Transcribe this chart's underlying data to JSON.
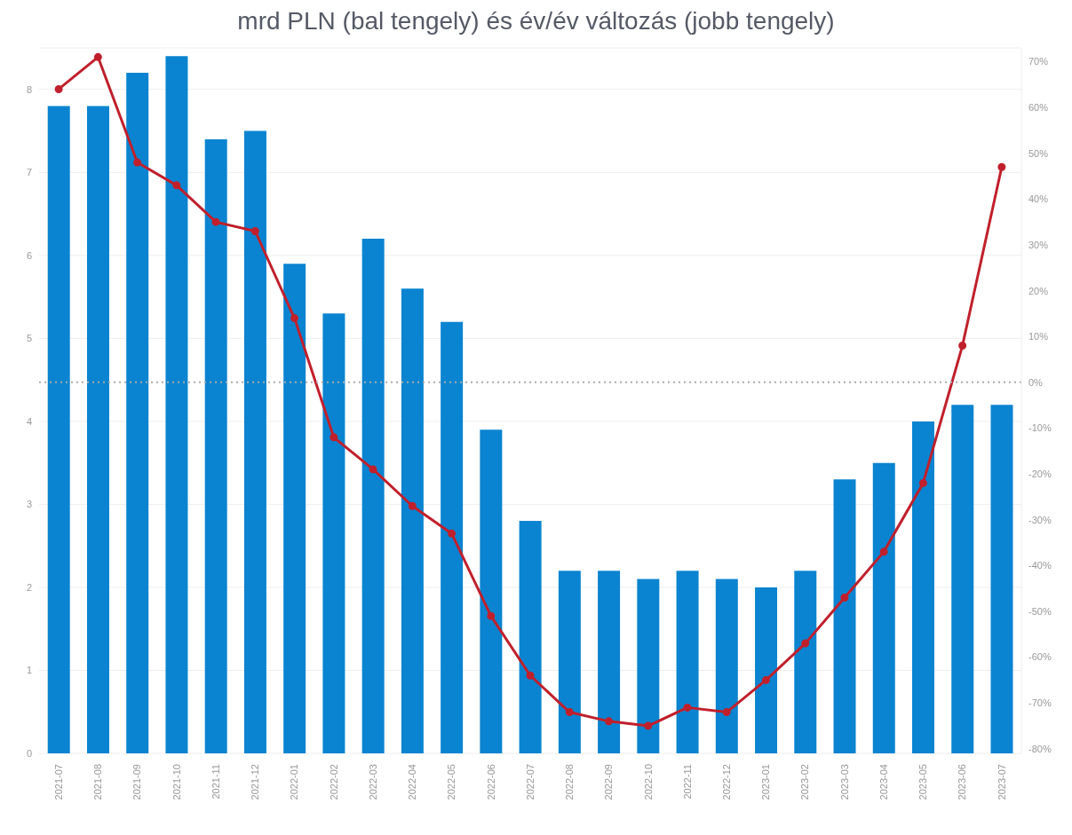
{
  "chart_data": {
    "type": "bar",
    "title": "mrd PLN (bal tengely) és év/év változás (jobb tengely)",
    "categories": [
      "2021-07",
      "2021-08",
      "2021-09",
      "2021-10",
      "2021-11",
      "2021-12",
      "2022-01",
      "2022-02",
      "2022-03",
      "2022-04",
      "2022-05",
      "2022-06",
      "2022-07",
      "2022-08",
      "2022-09",
      "2022-10",
      "2022-11",
      "2022-12",
      "2023-01",
      "2023-02",
      "2023-03",
      "2023-04",
      "2023-05",
      "2023-06",
      "2023-07"
    ],
    "series": [
      {
        "color": "#0a84d0",
        "values": [
          7.8,
          7.8,
          8.2,
          8.4,
          7.4,
          7.5,
          5.9,
          5.3,
          6.2,
          5.6,
          5.2,
          3.9,
          2.8,
          2.2,
          2.2,
          2.1,
          2.2,
          2.1,
          2.0,
          2.2,
          3.3,
          3.5,
          4.0,
          4.2,
          4.2
        ]
      },
      {
        "type": "line",
        "axis": "y2",
        "color": "#c0202c",
        "marker": "circle",
        "values": [
          64,
          71,
          48,
          43,
          35,
          33,
          14,
          -12,
          -19,
          -27,
          -33,
          -51,
          -64,
          -72,
          -74,
          -75,
          -71,
          -72,
          -65,
          -57,
          -47,
          -37,
          -22,
          8,
          47
        ]
      }
    ],
    "ylim": [
      0,
      8.5
    ],
    "yticks": [
      0,
      1,
      2,
      3,
      4,
      5,
      6,
      7,
      8
    ],
    "y2lim": [
      -81,
      73
    ],
    "y2ticks": [
      {
        "value": -80,
        "label": "-80%"
      },
      {
        "value": -70,
        "label": "-70%"
      },
      {
        "value": -60,
        "label": "-60%"
      },
      {
        "value": -50,
        "label": "-50%"
      },
      {
        "value": -40,
        "label": "-40%"
      },
      {
        "value": -30,
        "label": "-30%"
      },
      {
        "value": -20,
        "label": "-20%"
      },
      {
        "value": -10,
        "label": "-10%"
      },
      {
        "value": 0,
        "label": "0%"
      },
      {
        "value": 10,
        "label": "10%"
      },
      {
        "value": 20,
        "label": "20%"
      },
      {
        "value": 30,
        "label": "30%"
      },
      {
        "value": 40,
        "label": "40%"
      },
      {
        "value": 50,
        "label": "50%"
      },
      {
        "value": 60,
        "label": "60%"
      },
      {
        "value": 70,
        "label": "70%"
      }
    ],
    "ref_lines": [
      {
        "axis": "y2",
        "value": 0,
        "color": "#aaaaaa",
        "line_style": "dotted"
      }
    ],
    "grid": "y",
    "legend": false
  }
}
